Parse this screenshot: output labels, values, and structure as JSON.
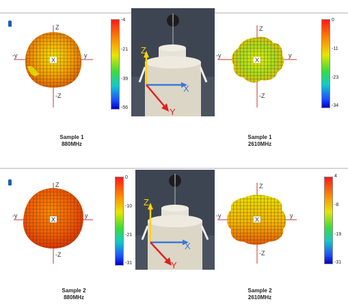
{
  "rows": [
    {
      "caption_left": {
        "line1": "Sample 1",
        "line2": "880MHz"
      },
      "caption_right": {
        "line1": "Sample 1",
        "line2": "2610MHz"
      },
      "left_scale": [
        "-4",
        "-21",
        "-39",
        "-56"
      ],
      "right_scale": [
        "0",
        "-11",
        "-23",
        "-34"
      ],
      "photo_axes": {
        "z": "Z",
        "x": "X",
        "y": "Y"
      }
    },
    {
      "caption_left": {
        "line1": "Sample 2",
        "line2": "880MHz"
      },
      "caption_right": {
        "line1": "Sample 2",
        "line2": "2610MHz"
      },
      "left_scale": [
        "0",
        "-10",
        "-21",
        "-31"
      ],
      "right_scale": [
        "4",
        "-8",
        "-19",
        "-31"
      ],
      "photo_axes": {
        "z": "Z",
        "x": "X",
        "y": "Y"
      }
    }
  ],
  "pattern_axes": {
    "z": "Z",
    "neg_z": "-Z",
    "y": "y",
    "neg_y": "-y",
    "x": "X"
  },
  "colors": {
    "scale_top": "#ff1a1a",
    "scale_bottom": "#0000c8",
    "z_arrow": "#ffd400",
    "x_arrow": "#3a78d8",
    "y_arrow": "#e02020"
  }
}
